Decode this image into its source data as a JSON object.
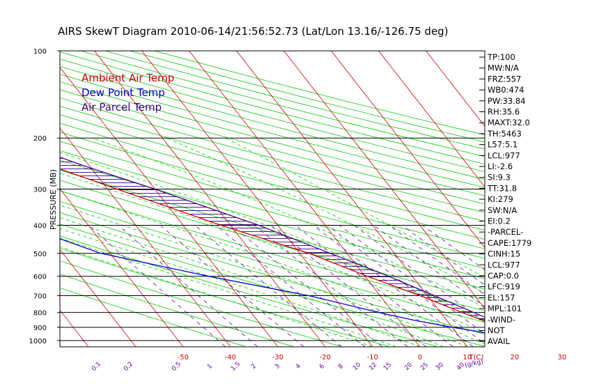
{
  "chart_data": {
    "type": "line",
    "title": "AIRS SkewT Diagram 2010-06-14/21:56:52.73 (Lat/Lon 13.16/-126.75 deg)",
    "ylabel": "PRESSURE (MB)",
    "xlabel": "T(C)",
    "mixing_ratio_unit": "(g/kg)",
    "pressure_ticks": [
      100,
      200,
      300,
      400,
      500,
      600,
      700,
      800,
      900,
      1000
    ],
    "pressure_range": [
      100,
      1050
    ],
    "temp_top_ticks": [
      -120,
      -110,
      -100,
      -90,
      -80,
      -70,
      -60,
      -50,
      -40
    ],
    "temp_bottom_ticks": [
      -50,
      -40,
      -30,
      -20,
      -10,
      0,
      10,
      20,
      30
    ],
    "mixing_ratio_labels": [
      "0.1",
      "0.2",
      "0.5",
      "1",
      "1.5",
      "2",
      "3",
      "4",
      "6",
      "8",
      "10",
      "12",
      "15",
      "20",
      "25",
      "30",
      "40"
    ],
    "legend": [
      {
        "label": "Ambient Air Temp",
        "color": "#cc0000"
      },
      {
        "label": "Dew Point Temp",
        "color": "#0000cc"
      },
      {
        "label": "Air Parcel Temp",
        "color": "#440088"
      }
    ],
    "series": [
      {
        "name": "Ambient Air Temp",
        "color": "#cc0000",
        "p": [
          1000,
          950,
          925,
          900,
          850,
          800,
          700,
          600,
          500,
          400,
          300,
          250,
          200,
          180,
          150,
          100
        ],
        "t": [
          26,
          22,
          21,
          20.5,
          17.5,
          14.5,
          8.5,
          0.5,
          -8,
          -22,
          -38,
          -48,
          -58,
          -62,
          -66,
          -72
        ]
      },
      {
        "name": "Dew Point Temp",
        "color": "#0000cc",
        "p": [
          1000,
          950,
          925,
          900,
          850,
          800,
          700,
          600,
          500,
          400,
          300,
          250,
          200,
          150,
          100
        ],
        "t": [
          22,
          17,
          14,
          10,
          3,
          -3,
          -15,
          -33,
          -52,
          -64,
          -72,
          -76,
          -80,
          -86,
          -94
        ]
      },
      {
        "name": "Air Parcel Temp",
        "color": "#440088",
        "p": [
          1000,
          977,
          950,
          900,
          850,
          800,
          700,
          600,
          500,
          400,
          300,
          250,
          200,
          150,
          100
        ],
        "t": [
          26,
          24,
          22.5,
          21.5,
          19.5,
          17,
          11.5,
          5,
          -3.5,
          -14,
          -30,
          -41,
          -53,
          -70,
          -90
        ]
      }
    ]
  },
  "indices": [
    "TP:100",
    "MW:N/A",
    "FRZ:557",
    "WB0:474",
    "PW:33.84",
    "RH:35.6",
    "MAXT:32.0",
    "TH:5463",
    "L57:5.1",
    "LCL:977",
    "LI:-2.6",
    "SI:9.3",
    "TT:31.8",
    "KI:279",
    "SW:N/A",
    "EI:0.2",
    "-PARCEL-",
    "CAPE:1779",
    "CINH:15",
    "LCL:977",
    "CAP:0.0",
    "LFC:919",
    "EL:157",
    "MPL:101",
    "-WIND-",
    "NOT",
    "AVAIL"
  ]
}
